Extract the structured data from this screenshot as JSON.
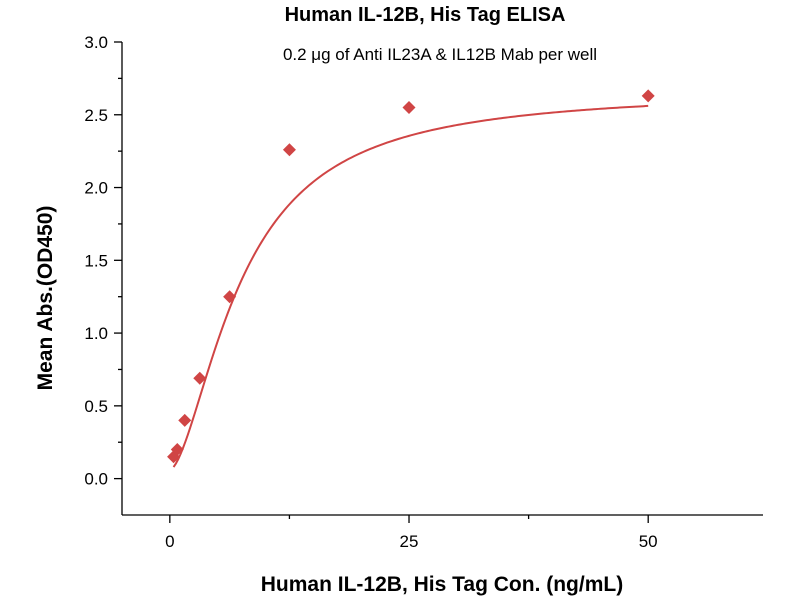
{
  "chart_data": {
    "type": "scatter",
    "title": "Human IL-12B, His Tag ELISA",
    "subtitle": "0.2 μg of Anti IL23A & IL12B Mab per well",
    "xlabel": "Human IL-12B, His Tag Con. (ng/mL)",
    "ylabel": "Mean Abs.(OD450)",
    "xlim": [
      -5,
      62
    ],
    "ylim": [
      -0.25,
      3.0
    ],
    "xticks": [
      0,
      25,
      50
    ],
    "xtick_labels": [
      "0",
      "25",
      "50"
    ],
    "yticks": [
      0.0,
      0.5,
      1.0,
      1.5,
      2.0,
      2.5,
      3.0
    ],
    "ytick_labels": [
      "0.0",
      "0.5",
      "1.0",
      "1.5",
      "2.0",
      "2.5",
      "3.0"
    ],
    "grid": false,
    "series": [
      {
        "marker": "diamond",
        "color": "#d04545",
        "x": [
          0.39,
          0.78,
          1.56,
          3.13,
          6.25,
          12.5,
          25,
          50
        ],
        "y": [
          0.15,
          0.2,
          0.4,
          0.69,
          1.25,
          2.26,
          2.55,
          2.63
        ],
        "fit_curve": true
      }
    ]
  }
}
